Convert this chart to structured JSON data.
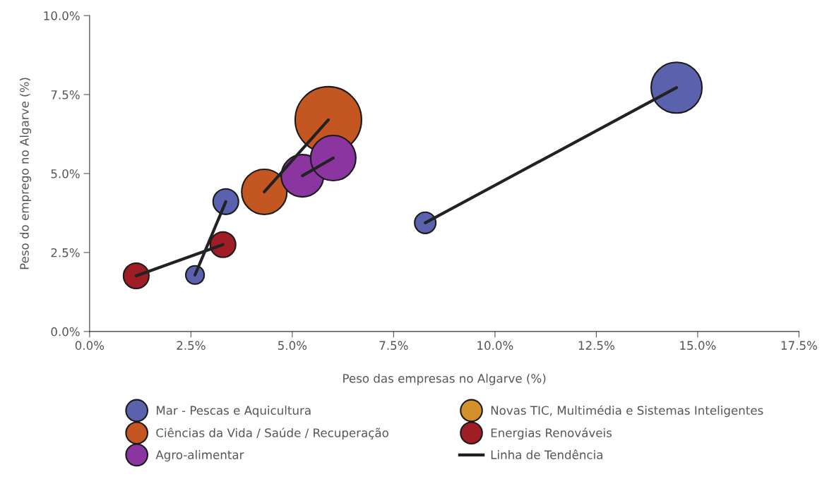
{
  "chart_data": {
    "type": "bubble",
    "xlabel": "Peso das empresas no Algarve (%)",
    "ylabel": "Peso do emprego no Algarve (%)",
    "xlim": [
      0,
      17.5
    ],
    "ylim": [
      0,
      10
    ],
    "xticks": [
      {
        "value": 0,
        "label": "0.0%"
      },
      {
        "value": 2.5,
        "label": "2.5%"
      },
      {
        "value": 5,
        "label": "5.0%"
      },
      {
        "value": 7.5,
        "label": "7.5%"
      },
      {
        "value": 10,
        "label": "10.0%"
      },
      {
        "value": 12.5,
        "label": "12.5%"
      },
      {
        "value": 15,
        "label": "15.0%"
      },
      {
        "value": 17.5,
        "label": "17.5%"
      }
    ],
    "yticks": [
      {
        "value": 0,
        "label": "0.0%"
      },
      {
        "value": 2.5,
        "label": "2.5%"
      },
      {
        "value": 5,
        "label": "5.0%"
      },
      {
        "value": 7.5,
        "label": "7.5%"
      },
      {
        "value": 10,
        "label": "10.0%"
      }
    ],
    "grid": false,
    "legend": "bottom",
    "marker": "circle",
    "series": [
      {
        "name": "Mar - Pescas e Aquicultura",
        "color": "#5a62ad",
        "x": [
          2.6,
          3.36,
          8.28,
          14.48
        ],
        "values": [
          1.79,
          4.11,
          3.44,
          7.72
        ],
        "sizes": [
          0.077,
          0.147,
          0.102,
          0.587
        ]
      },
      {
        "name": "Ciências da Vida / Saúde / Recuperação",
        "color": "#c45622",
        "x": [
          4.31,
          5.89
        ],
        "values": [
          4.42,
          6.7
        ],
        "sizes": [
          0.464,
          1
        ]
      },
      {
        "name": "Agro-alimentar",
        "color": "#8a35a0",
        "x": [
          5.25,
          6.01
        ],
        "values": [
          4.93,
          5.49
        ],
        "sizes": [
          0.407,
          0.464
        ]
      },
      {
        "name": "Novas TIC, Multimédia e Sistemas Inteligentes",
        "color": "#d4902a"
      },
      {
        "name": "Energias Renováveis",
        "color": "#a01d26",
        "x": [
          1.15,
          3.29
        ],
        "values": [
          1.76,
          2.75
        ],
        "sizes": [
          0.147,
          0.147
        ]
      },
      {
        "type": "line",
        "name": "Linha de Tendência",
        "color": "#222222",
        "line_style": "solid",
        "marker": "none",
        "x": [
          2.6,
          3.36
        ],
        "values": [
          1.79,
          4.11
        ]
      },
      {
        "type": "line",
        "color": "#222222",
        "line_style": "solid",
        "marker": "none",
        "x": [
          8.28,
          14.48
        ],
        "values": [
          3.44,
          7.72
        ]
      },
      {
        "type": "line",
        "color": "#222222",
        "line_style": "solid",
        "marker": "none",
        "x": [
          4.31,
          5.89
        ],
        "values": [
          4.42,
          6.7
        ]
      },
      {
        "type": "line",
        "color": "#222222",
        "line_style": "solid",
        "marker": "none",
        "x": [
          5.25,
          6.01
        ],
        "values": [
          4.93,
          5.49
        ]
      },
      {
        "type": "line",
        "color": "#222222",
        "line_style": "solid",
        "marker": "none",
        "x": [
          1.15,
          3.29
        ],
        "values": [
          1.76,
          2.75
        ]
      }
    ]
  }
}
